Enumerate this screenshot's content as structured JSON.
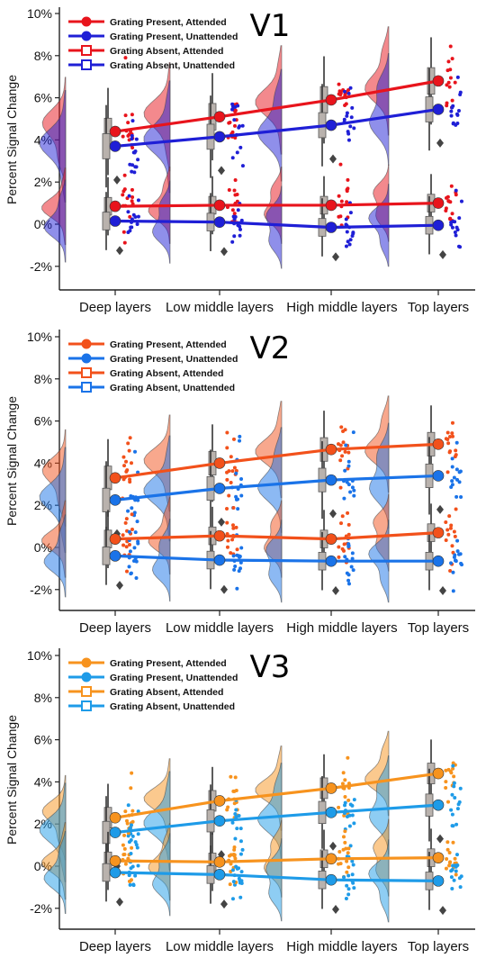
{
  "figure": {
    "ylabel": "Percent Signal Change",
    "categories": [
      "Deep layers",
      "Low middle layers",
      "High middle layers",
      "Top layers"
    ],
    "yticks": [
      "-2%",
      "0%",
      "2%",
      "4%",
      "6%",
      "8%",
      "10%"
    ]
  },
  "chart_data": [
    {
      "type": "line",
      "title": "V1",
      "ylabel": "Percent Signal Change",
      "ylim": [
        -3,
        10
      ],
      "categories": [
        "Deep layers",
        "Low middle layers",
        "High middle layers",
        "Top layers"
      ],
      "legend_position": "top-left",
      "colors": {
        "attended": "#e8141c",
        "unattended": "#1f1fd6"
      },
      "series": [
        {
          "name": "Grating Present, Attended",
          "values": [
            4.4,
            5.1,
            5.9,
            6.8
          ]
        },
        {
          "name": "Grating Present, Unattended",
          "values": [
            3.7,
            4.15,
            4.7,
            5.45
          ]
        },
        {
          "name": "Grating Absent, Attended",
          "values": [
            0.85,
            0.9,
            0.9,
            1.0
          ]
        },
        {
          "name": "Grating Absent, Unattended",
          "values": [
            0.15,
            0.1,
            -0.15,
            -0.05
          ]
        }
      ]
    },
    {
      "type": "line",
      "title": "V2",
      "ylabel": "Percent Signal Change",
      "ylim": [
        -3,
        10
      ],
      "categories": [
        "Deep layers",
        "Low middle layers",
        "High middle layers",
        "Top layers"
      ],
      "legend_position": "top-left",
      "colors": {
        "attended": "#f2511b",
        "unattended": "#1a73e8"
      },
      "series": [
        {
          "name": "Grating Present, Attended",
          "values": [
            3.3,
            4.0,
            4.65,
            4.9
          ]
        },
        {
          "name": "Grating Present, Unattended",
          "values": [
            2.25,
            2.8,
            3.2,
            3.4
          ]
        },
        {
          "name": "Grating Absent, Attended",
          "values": [
            0.4,
            0.55,
            0.4,
            0.7
          ]
        },
        {
          "name": "Grating Absent, Unattended",
          "values": [
            -0.4,
            -0.6,
            -0.65,
            -0.65
          ]
        }
      ]
    },
    {
      "type": "line",
      "title": "V3",
      "ylabel": "Percent Signal Change",
      "ylim": [
        -3,
        10
      ],
      "categories": [
        "Deep layers",
        "Low middle layers",
        "High middle layers",
        "Top layers"
      ],
      "legend_position": "top-left",
      "colors": {
        "attended": "#f7931e",
        "unattended": "#1e9be8"
      },
      "series": [
        {
          "name": "Grating Present, Attended",
          "values": [
            2.3,
            3.1,
            3.7,
            4.4
          ]
        },
        {
          "name": "Grating Present, Unattended",
          "values": [
            1.6,
            2.15,
            2.55,
            2.9
          ]
        },
        {
          "name": "Grating Absent, Attended",
          "values": [
            0.25,
            0.2,
            0.35,
            0.4
          ]
        },
        {
          "name": "Grating Absent, Unattended",
          "values": [
            -0.3,
            -0.4,
            -0.65,
            -0.7
          ]
        }
      ]
    }
  ]
}
